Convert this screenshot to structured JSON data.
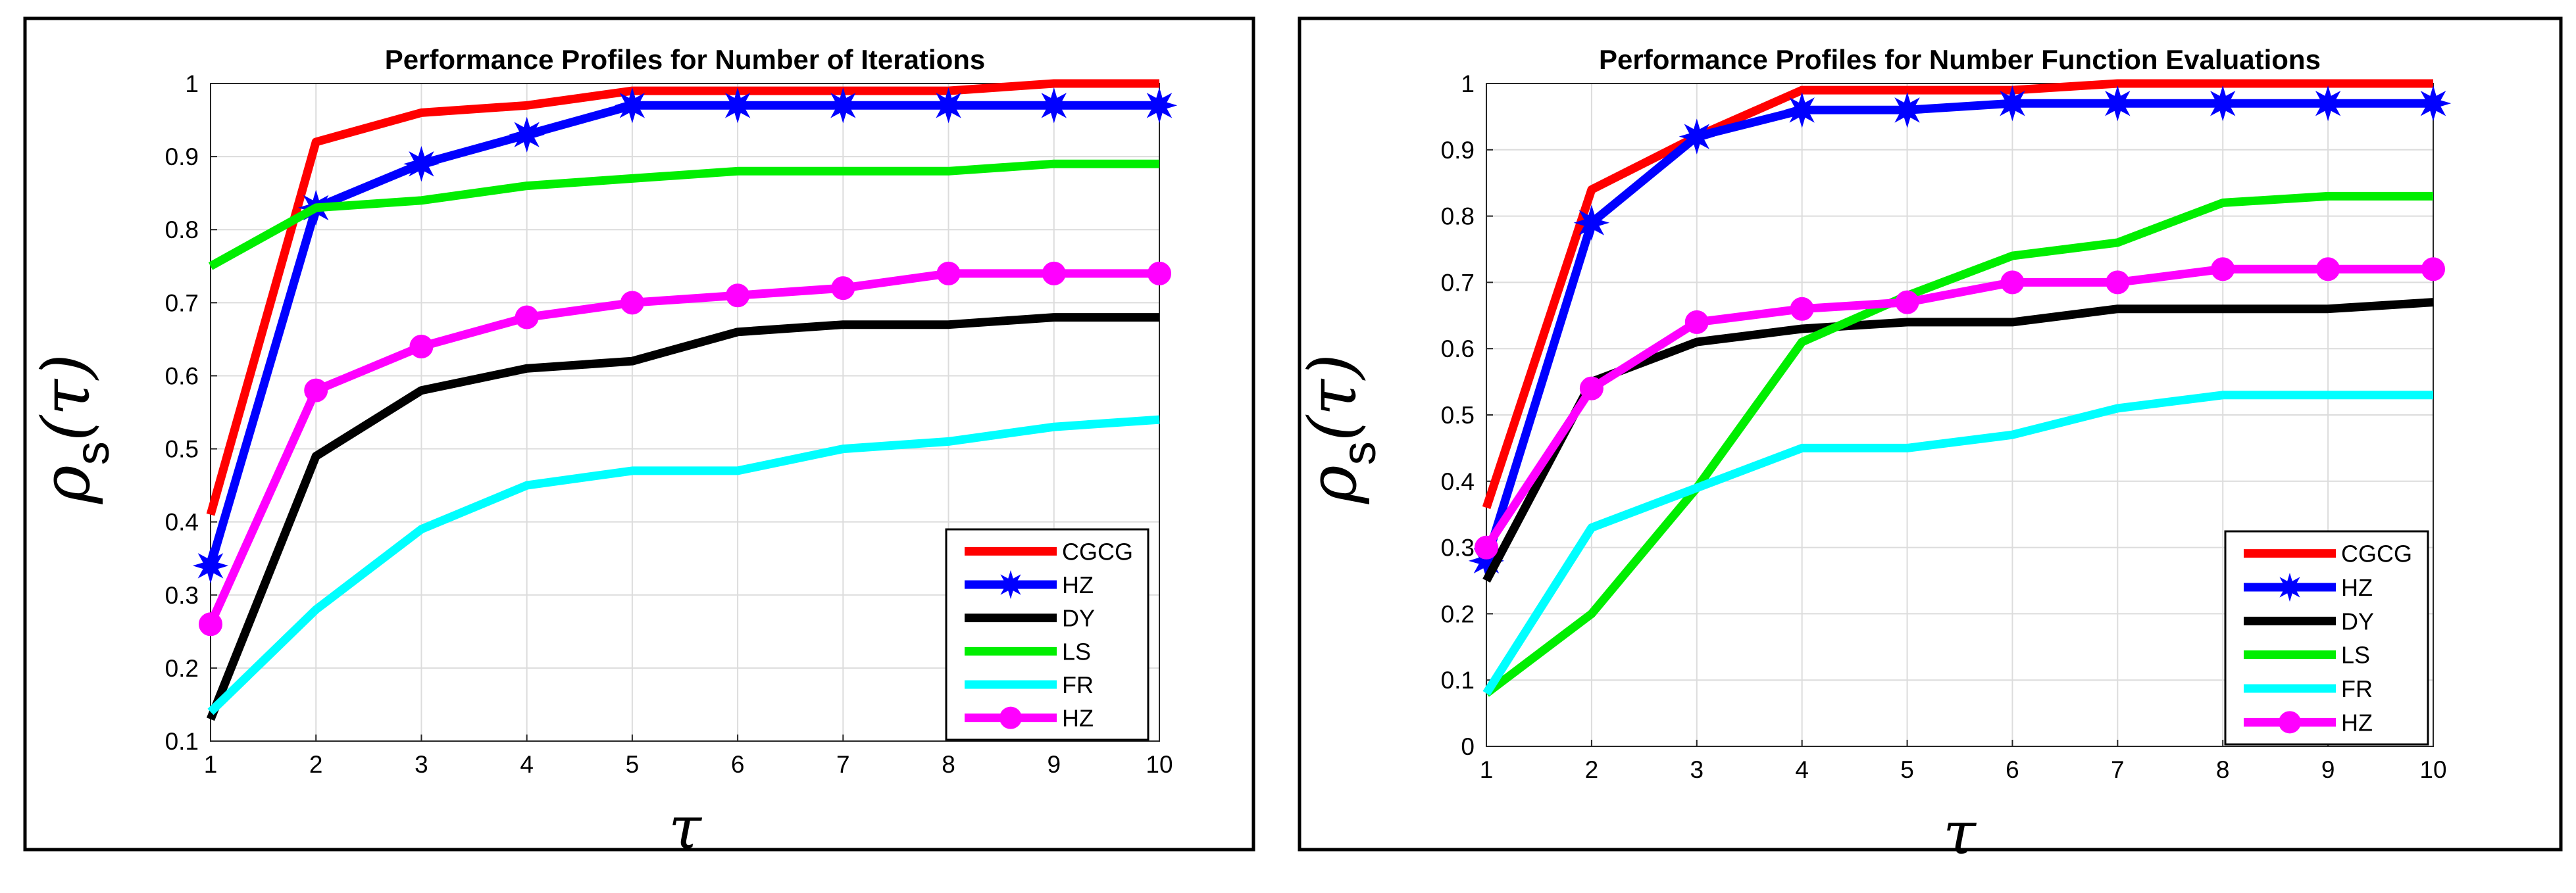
{
  "chart_data": [
    {
      "type": "line",
      "title": "Performance Profiles for Number of Iterations",
      "ylabel": {
        "symbol": "ρ",
        "subscript": "s",
        "arg": "(τ)"
      },
      "xlabel": "τ",
      "x": [
        1,
        2,
        3,
        4,
        5,
        6,
        7,
        8,
        9,
        10
      ],
      "xticks": [
        "1",
        "2",
        "3",
        "4",
        "5",
        "6",
        "7",
        "8",
        "9",
        "10"
      ],
      "xlim": [
        1,
        10
      ],
      "ylim": [
        0.1,
        1
      ],
      "yticks": [
        "0.1",
        "0.2",
        "0.3",
        "0.4",
        "0.5",
        "0.6",
        "0.7",
        "0.8",
        "0.9",
        "1"
      ],
      "grid": true,
      "legend": "bottom-right",
      "series": [
        {
          "name": "CGCG",
          "color": "#ff0000",
          "marker": "none",
          "values": [
            0.41,
            0.92,
            0.96,
            0.97,
            0.99,
            0.99,
            0.99,
            0.99,
            1.0,
            1.0
          ]
        },
        {
          "name": "HZ",
          "color": "#0000ff",
          "marker": "star",
          "values": [
            0.34,
            0.83,
            0.89,
            0.93,
            0.97,
            0.97,
            0.97,
            0.97,
            0.97,
            0.97
          ]
        },
        {
          "name": " DY",
          "color": "#000000",
          "marker": "none",
          "values": [
            0.13,
            0.49,
            0.58,
            0.61,
            0.62,
            0.66,
            0.67,
            0.67,
            0.68,
            0.68
          ]
        },
        {
          "name": "LS",
          "color": "#00ee00",
          "marker": "none",
          "values": [
            0.75,
            0.83,
            0.84,
            0.86,
            0.87,
            0.88,
            0.88,
            0.88,
            0.89,
            0.89
          ]
        },
        {
          "name": "FR",
          "color": "#00ffff",
          "marker": "none",
          "values": [
            0.14,
            0.28,
            0.39,
            0.45,
            0.47,
            0.47,
            0.5,
            0.51,
            0.53,
            0.54
          ]
        },
        {
          "name": "HZ",
          "color": "#ff00ff",
          "marker": "circle",
          "values": [
            0.26,
            0.58,
            0.64,
            0.68,
            0.7,
            0.71,
            0.72,
            0.74,
            0.74,
            0.74
          ]
        }
      ]
    },
    {
      "type": "line",
      "title": "Performance Profiles for Number Function Evaluations",
      "ylabel": {
        "symbol": "ρ",
        "subscript": "s",
        "arg": "(τ)"
      },
      "xlabel": "τ",
      "x": [
        1,
        2,
        3,
        4,
        5,
        6,
        7,
        8,
        9,
        10
      ],
      "xticks": [
        "1",
        "2",
        "3",
        "4",
        "5",
        "6",
        "7",
        "8",
        "9",
        "10"
      ],
      "xlim": [
        1,
        10
      ],
      "ylim": [
        0,
        1
      ],
      "yticks": [
        "0",
        "0.1",
        "0.2",
        "0.3",
        "0.4",
        "0.5",
        "0.6",
        "0.7",
        "0.8",
        "0.9",
        "1"
      ],
      "grid": true,
      "legend": "bottom-right",
      "series": [
        {
          "name": "CGCG",
          "color": "#ff0000",
          "marker": "none",
          "values": [
            0.36,
            0.84,
            0.92,
            0.99,
            0.99,
            0.99,
            1.0,
            1.0,
            1.0,
            1.0
          ]
        },
        {
          "name": "HZ",
          "color": "#0000ff",
          "marker": "star",
          "values": [
            0.28,
            0.79,
            0.92,
            0.96,
            0.96,
            0.97,
            0.97,
            0.97,
            0.97,
            0.97
          ]
        },
        {
          "name": " DY",
          "color": "#000000",
          "marker": "none",
          "values": [
            0.25,
            0.55,
            0.61,
            0.63,
            0.64,
            0.64,
            0.66,
            0.66,
            0.66,
            0.67
          ]
        },
        {
          "name": "LS",
          "color": "#00ee00",
          "marker": "none",
          "values": [
            0.08,
            0.2,
            0.39,
            0.61,
            0.68,
            0.74,
            0.76,
            0.82,
            0.83,
            0.83
          ]
        },
        {
          "name": "FR",
          "color": "#00ffff",
          "marker": "none",
          "values": [
            0.08,
            0.33,
            0.39,
            0.45,
            0.45,
            0.47,
            0.51,
            0.53,
            0.53,
            0.53
          ]
        },
        {
          "name": "HZ",
          "color": "#ff00ff",
          "marker": "circle",
          "values": [
            0.3,
            0.54,
            0.64,
            0.66,
            0.67,
            0.7,
            0.7,
            0.72,
            0.72,
            0.72
          ]
        }
      ]
    }
  ]
}
